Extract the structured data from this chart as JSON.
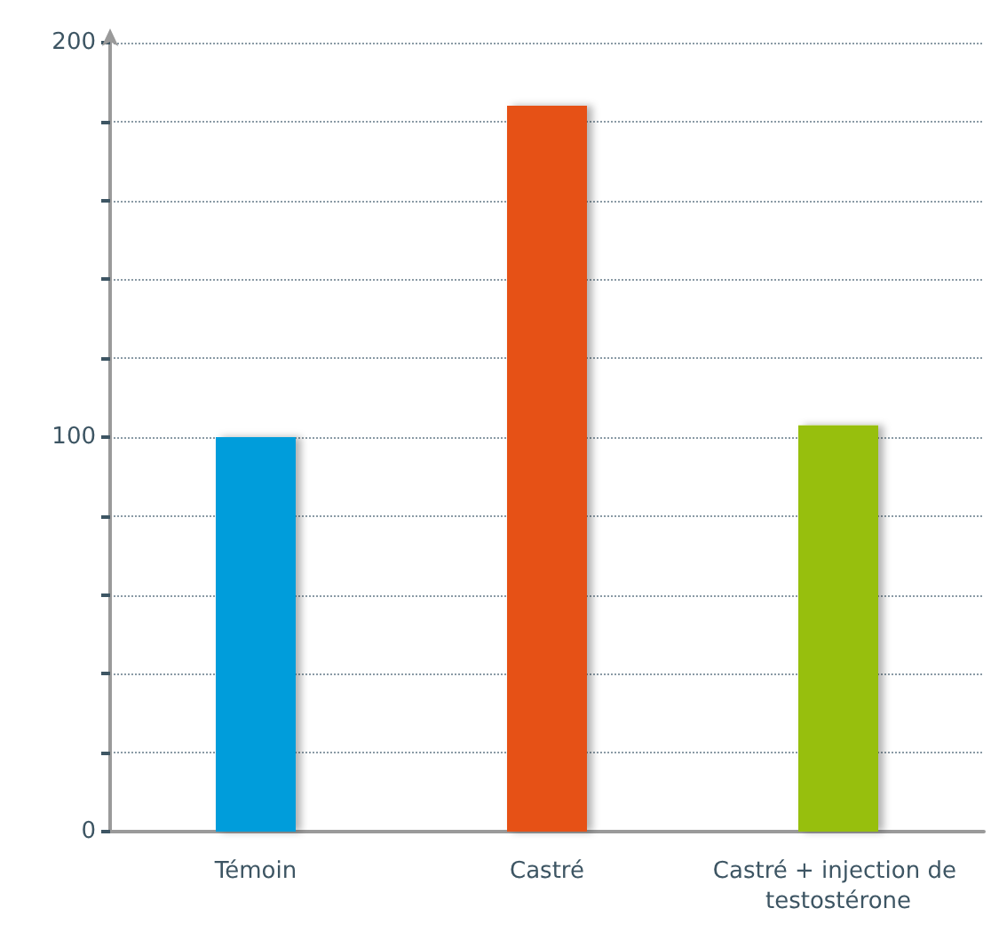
{
  "chart_data": {
    "type": "bar",
    "categories": [
      "Témoin",
      "Castré",
      "Castré + injection de testostérone"
    ],
    "values": [
      100,
      184,
      103
    ],
    "colors": [
      "#009ddb",
      "#e65114",
      "#97bf0d"
    ],
    "ylim": [
      0,
      200
    ],
    "yticks": [
      0,
      {
        "value": 20,
        "label": null
      },
      {
        "value": 40,
        "label": null
      },
      {
        "value": 60,
        "label": null
      },
      {
        "value": 80,
        "label": null
      },
      100,
      {
        "value": 120,
        "label": null
      },
      {
        "value": 140,
        "label": null
      },
      {
        "value": 160,
        "label": null
      },
      {
        "value": 180,
        "label": null
      },
      200
    ],
    "grid": "y"
  }
}
